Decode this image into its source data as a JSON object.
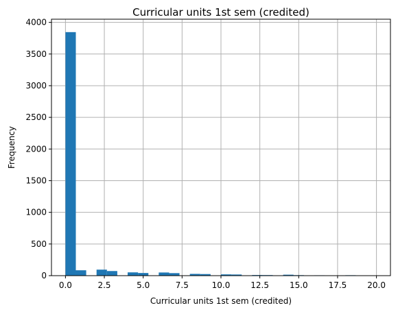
{
  "chart_data": {
    "type": "bar",
    "title": "Curricular units 1st sem (credited)",
    "xlabel": "Curricular units 1st sem (credited)",
    "ylabel": "Frequency",
    "xlim": [
      -0.9,
      20.9
    ],
    "ylim": [
      0,
      4050
    ],
    "grid": true,
    "bar_color": "#1f77b4",
    "bins": [
      {
        "start": 0.0,
        "end": 0.667,
        "value": 3846
      },
      {
        "start": 0.667,
        "end": 1.333,
        "value": 85
      },
      {
        "start": 1.333,
        "end": 2.0,
        "value": 0
      },
      {
        "start": 2.0,
        "end": 2.667,
        "value": 95
      },
      {
        "start": 2.667,
        "end": 3.333,
        "value": 73
      },
      {
        "start": 3.333,
        "end": 4.0,
        "value": 0
      },
      {
        "start": 4.0,
        "end": 4.667,
        "value": 52
      },
      {
        "start": 4.667,
        "end": 5.333,
        "value": 42
      },
      {
        "start": 5.333,
        "end": 6.0,
        "value": 0
      },
      {
        "start": 6.0,
        "end": 6.667,
        "value": 50
      },
      {
        "start": 6.667,
        "end": 7.333,
        "value": 40
      },
      {
        "start": 7.333,
        "end": 8.0,
        "value": 0
      },
      {
        "start": 8.0,
        "end": 8.667,
        "value": 28
      },
      {
        "start": 8.667,
        "end": 9.333,
        "value": 25
      },
      {
        "start": 9.333,
        "end": 10.0,
        "value": 0
      },
      {
        "start": 10.0,
        "end": 10.667,
        "value": 20
      },
      {
        "start": 10.667,
        "end": 11.333,
        "value": 18
      },
      {
        "start": 11.333,
        "end": 12.0,
        "value": 0
      },
      {
        "start": 12.0,
        "end": 12.667,
        "value": 10
      },
      {
        "start": 12.667,
        "end": 13.333,
        "value": 9
      },
      {
        "start": 13.333,
        "end": 14.0,
        "value": 0
      },
      {
        "start": 14.0,
        "end": 14.667,
        "value": 15
      },
      {
        "start": 14.667,
        "end": 15.333,
        "value": 8
      },
      {
        "start": 15.333,
        "end": 16.0,
        "value": 0
      },
      {
        "start": 16.0,
        "end": 16.667,
        "value": 6
      },
      {
        "start": 16.667,
        "end": 17.333,
        "value": 5
      },
      {
        "start": 17.333,
        "end": 18.0,
        "value": 0
      },
      {
        "start": 18.0,
        "end": 18.667,
        "value": 7
      },
      {
        "start": 18.667,
        "end": 19.333,
        "value": 2
      },
      {
        "start": 19.333,
        "end": 20.0,
        "value": 2
      }
    ],
    "x_ticks": [
      {
        "value": 0.0,
        "label": "0.0"
      },
      {
        "value": 2.5,
        "label": "2.5"
      },
      {
        "value": 5.0,
        "label": "5.0"
      },
      {
        "value": 7.5,
        "label": "7.5"
      },
      {
        "value": 10.0,
        "label": "10.0"
      },
      {
        "value": 12.5,
        "label": "12.5"
      },
      {
        "value": 15.0,
        "label": "15.0"
      },
      {
        "value": 17.5,
        "label": "17.5"
      },
      {
        "value": 20.0,
        "label": "20.0"
      }
    ],
    "y_ticks": [
      {
        "value": 0,
        "label": "0"
      },
      {
        "value": 500,
        "label": "500"
      },
      {
        "value": 1000,
        "label": "1000"
      },
      {
        "value": 1500,
        "label": "1500"
      },
      {
        "value": 2000,
        "label": "2000"
      },
      {
        "value": 2500,
        "label": "2500"
      },
      {
        "value": 3000,
        "label": "3000"
      },
      {
        "value": 3500,
        "label": "3500"
      },
      {
        "value": 4000,
        "label": "4000"
      }
    ]
  }
}
